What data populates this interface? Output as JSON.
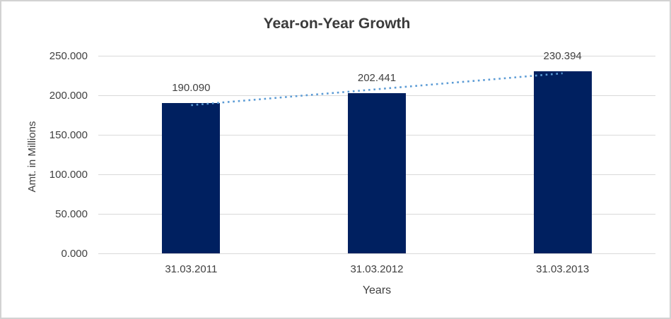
{
  "title": "Year-on-Year Growth",
  "colors": {
    "bar": "#002060",
    "trendline": "#5b9bd5",
    "gridline": "#d9d9d9",
    "text": "#404040",
    "title_text": "#3b3b3b",
    "outer_border": "#d2d2d2"
  },
  "chart_data": {
    "type": "bar",
    "title": "Year-on-Year Growth",
    "xlabel": "Years",
    "ylabel": "Amt. in Millions",
    "categories": [
      "31.03.2011",
      "31.03.2012",
      "31.03.2013"
    ],
    "values": [
      190.09,
      202.441,
      230.394
    ],
    "data_labels": [
      "190.090",
      "202.441",
      "230.394"
    ],
    "ylim": [
      0,
      250
    ],
    "ytick_step": 50,
    "ytick_labels": [
      "0.000",
      "50.000",
      "100.000",
      "150.000",
      "200.000",
      "250.000"
    ],
    "grid": true,
    "legend": "none",
    "trendline": {
      "type": "linear",
      "style": "dotted"
    }
  }
}
